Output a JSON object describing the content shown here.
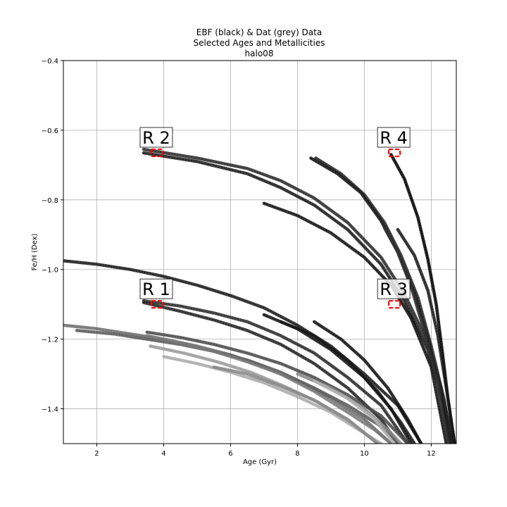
{
  "chart_data": {
    "type": "scatter",
    "title_lines": [
      "EBF (black) & Dat (grey) Data",
      "Selected Ages and Metallicities",
      "halo08"
    ],
    "xlabel": "Age (Gyr)",
    "ylabel": "Fe/H (Dex)",
    "xlim": [
      1.0,
      12.75
    ],
    "ylim": [
      -1.5,
      -0.4
    ],
    "xticks": [
      2,
      4,
      6,
      8,
      10,
      12
    ],
    "yticks": [
      -1.4,
      -1.2,
      -1.0,
      -0.8,
      -0.6,
      -0.4
    ],
    "xtick_labels": [
      "2",
      "4",
      "6",
      "8",
      "10",
      "12"
    ],
    "ytick_labels": [
      "−1.4",
      "−1.2",
      "−1.0",
      "−0.8",
      "−0.6",
      "−0.4"
    ],
    "grid": true,
    "colors": {
      "ebf": "#000000",
      "dat": "#808080",
      "region_box": "#ff0000"
    },
    "regions": [
      {
        "label": "R 1",
        "age": 3.8,
        "feh": -1.1
      },
      {
        "label": "R 2",
        "age": 3.8,
        "feh": -0.665
      },
      {
        "label": "R 3",
        "age": 10.9,
        "feh": -1.1
      },
      {
        "label": "R 4",
        "age": 10.9,
        "feh": -0.665
      }
    ],
    "series": [
      {
        "points": [
          [
            3.4,
            -0.655
          ],
          [
            5.0,
            -0.68
          ],
          [
            6.5,
            -0.71
          ],
          [
            7.5,
            -0.745
          ],
          [
            8.5,
            -0.795
          ],
          [
            9.5,
            -0.865
          ],
          [
            10.5,
            -0.965
          ],
          [
            11.2,
            -1.07
          ],
          [
            11.9,
            -1.21
          ],
          [
            12.3,
            -1.34
          ],
          [
            12.65,
            -1.5
          ]
        ],
        "color": "#2a2a2a"
      },
      {
        "points": [
          [
            3.4,
            -0.665
          ],
          [
            5.0,
            -0.69
          ],
          [
            6.5,
            -0.725
          ],
          [
            7.5,
            -0.765
          ],
          [
            8.5,
            -0.815
          ],
          [
            9.5,
            -0.885
          ],
          [
            10.5,
            -0.985
          ],
          [
            11.2,
            -1.09
          ],
          [
            11.9,
            -1.23
          ],
          [
            12.3,
            -1.36
          ],
          [
            12.6,
            -1.5
          ]
        ],
        "color": "#1a1a1a"
      },
      {
        "points": [
          [
            7.0,
            -0.81
          ],
          [
            8.0,
            -0.845
          ],
          [
            9.0,
            -0.895
          ],
          [
            10.0,
            -0.965
          ],
          [
            10.8,
            -1.045
          ],
          [
            11.4,
            -1.14
          ],
          [
            12.0,
            -1.28
          ],
          [
            12.45,
            -1.5
          ]
        ],
        "color": "#111111"
      },
      {
        "points": [
          [
            8.4,
            -0.68
          ],
          [
            9.2,
            -0.725
          ],
          [
            9.9,
            -0.78
          ],
          [
            10.5,
            -0.86
          ],
          [
            11.0,
            -0.95
          ],
          [
            11.5,
            -1.07
          ],
          [
            11.9,
            -1.2
          ],
          [
            12.3,
            -1.37
          ],
          [
            12.55,
            -1.5
          ]
        ],
        "color": "#111111"
      },
      {
        "points": [
          [
            8.55,
            -0.68
          ],
          [
            9.3,
            -0.725
          ],
          [
            10.0,
            -0.785
          ],
          [
            10.6,
            -0.865
          ],
          [
            11.1,
            -0.96
          ],
          [
            11.6,
            -1.08
          ],
          [
            12.0,
            -1.22
          ],
          [
            12.4,
            -1.38
          ],
          [
            12.6,
            -1.5
          ]
        ],
        "color": "#222222"
      },
      {
        "points": [
          [
            10.8,
            -0.67
          ],
          [
            11.2,
            -0.74
          ],
          [
            11.6,
            -0.85
          ],
          [
            11.9,
            -0.97
          ],
          [
            12.15,
            -1.1
          ],
          [
            12.35,
            -1.25
          ],
          [
            12.5,
            -1.37
          ],
          [
            12.7,
            -1.5
          ]
        ],
        "color": "#000000"
      },
      {
        "points": [
          [
            11.0,
            -0.885
          ],
          [
            11.5,
            -0.96
          ],
          [
            11.9,
            -1.06
          ],
          [
            12.2,
            -1.19
          ],
          [
            12.45,
            -1.34
          ],
          [
            12.7,
            -1.5
          ]
        ],
        "color": "#1a1a1a"
      },
      {
        "points": [
          [
            10.6,
            -0.88
          ],
          [
            11.0,
            -0.95
          ],
          [
            11.4,
            -1.05
          ],
          [
            11.8,
            -1.18
          ],
          [
            12.2,
            -1.33
          ],
          [
            12.5,
            -1.5
          ]
        ],
        "color": "#333333"
      },
      {
        "points": [
          [
            1.0,
            -0.975
          ],
          [
            2.0,
            -0.985
          ],
          [
            3.0,
            -1.0
          ],
          [
            4.0,
            -1.02
          ],
          [
            5.0,
            -1.045
          ],
          [
            6.0,
            -1.075
          ],
          [
            7.0,
            -1.11
          ],
          [
            8.0,
            -1.16
          ],
          [
            9.0,
            -1.22
          ],
          [
            10.0,
            -1.3
          ],
          [
            11.0,
            -1.39
          ],
          [
            11.7,
            -1.5
          ]
        ],
        "color": "#1a1a1a"
      },
      {
        "points": [
          [
            3.4,
            -1.09
          ],
          [
            4.5,
            -1.105
          ],
          [
            5.5,
            -1.125
          ],
          [
            6.5,
            -1.15
          ],
          [
            7.5,
            -1.19
          ],
          [
            8.5,
            -1.24
          ],
          [
            9.5,
            -1.31
          ],
          [
            10.5,
            -1.39
          ],
          [
            11.3,
            -1.5
          ]
        ],
        "color": "#2a2a2a"
      },
      {
        "points": [
          [
            3.4,
            -1.095
          ],
          [
            4.5,
            -1.12
          ],
          [
            5.5,
            -1.145
          ],
          [
            6.5,
            -1.175
          ],
          [
            7.5,
            -1.215
          ],
          [
            8.5,
            -1.27
          ],
          [
            9.5,
            -1.34
          ],
          [
            10.5,
            -1.43
          ],
          [
            11.0,
            -1.5
          ]
        ],
        "color": "#222222"
      },
      {
        "points": [
          [
            7.0,
            -1.13
          ],
          [
            8.0,
            -1.17
          ],
          [
            9.0,
            -1.23
          ],
          [
            10.0,
            -1.31
          ],
          [
            10.8,
            -1.4
          ],
          [
            11.4,
            -1.5
          ]
        ],
        "color": "#111111"
      },
      {
        "points": [
          [
            7.5,
            -1.15
          ],
          [
            8.5,
            -1.19
          ],
          [
            9.5,
            -1.26
          ],
          [
            10.4,
            -1.35
          ],
          [
            11.1,
            -1.44
          ],
          [
            11.5,
            -1.5
          ]
        ],
        "color": "#1a1a1a"
      },
      {
        "points": [
          [
            8.5,
            -1.15
          ],
          [
            9.3,
            -1.2
          ],
          [
            10.0,
            -1.26
          ],
          [
            10.7,
            -1.34
          ],
          [
            11.3,
            -1.43
          ],
          [
            11.7,
            -1.5
          ]
        ],
        "color": "#111111"
      },
      {
        "points": [
          [
            1.0,
            -1.16
          ],
          [
            2.0,
            -1.17
          ],
          [
            3.0,
            -1.185
          ],
          [
            4.0,
            -1.2
          ],
          [
            5.0,
            -1.22
          ],
          [
            6.0,
            -1.245
          ],
          [
            7.0,
            -1.28
          ],
          [
            8.0,
            -1.32
          ],
          [
            9.0,
            -1.37
          ],
          [
            10.0,
            -1.43
          ],
          [
            10.8,
            -1.5
          ]
        ],
        "color": "#6e6e6e"
      },
      {
        "points": [
          [
            1.4,
            -1.175
          ],
          [
            2.5,
            -1.185
          ],
          [
            3.5,
            -1.2
          ],
          [
            4.5,
            -1.215
          ],
          [
            5.5,
            -1.235
          ],
          [
            6.5,
            -1.26
          ],
          [
            7.5,
            -1.295
          ],
          [
            8.5,
            -1.34
          ],
          [
            9.5,
            -1.39
          ],
          [
            10.5,
            -1.45
          ],
          [
            11.0,
            -1.5
          ]
        ],
        "color": "#5a5a5a"
      },
      {
        "points": [
          [
            3.5,
            -1.18
          ],
          [
            4.5,
            -1.195
          ],
          [
            5.5,
            -1.215
          ],
          [
            6.5,
            -1.24
          ],
          [
            7.5,
            -1.27
          ],
          [
            8.5,
            -1.31
          ],
          [
            9.5,
            -1.36
          ],
          [
            10.5,
            -1.42
          ],
          [
            11.3,
            -1.5
          ]
        ],
        "color": "#4a4a4a"
      },
      {
        "points": [
          [
            3.5,
            -1.19
          ],
          [
            4.5,
            -1.21
          ],
          [
            5.5,
            -1.235
          ],
          [
            6.5,
            -1.265
          ],
          [
            7.5,
            -1.3
          ],
          [
            8.5,
            -1.35
          ],
          [
            9.5,
            -1.41
          ],
          [
            10.3,
            -1.46
          ],
          [
            10.8,
            -1.5
          ]
        ],
        "color": "#7a7a7a"
      },
      {
        "points": [
          [
            3.6,
            -1.22
          ],
          [
            4.6,
            -1.24
          ],
          [
            5.6,
            -1.265
          ],
          [
            6.6,
            -1.295
          ],
          [
            7.6,
            -1.335
          ],
          [
            8.6,
            -1.38
          ],
          [
            9.6,
            -1.44
          ],
          [
            10.4,
            -1.5
          ]
        ],
        "color": "#9a9a9a"
      },
      {
        "points": [
          [
            4.0,
            -1.25
          ],
          [
            5.0,
            -1.27
          ],
          [
            6.0,
            -1.295
          ],
          [
            7.0,
            -1.325
          ],
          [
            8.0,
            -1.365
          ],
          [
            9.0,
            -1.41
          ],
          [
            10.0,
            -1.47
          ],
          [
            10.5,
            -1.5
          ]
        ],
        "color": "#aaaaaa"
      },
      {
        "points": [
          [
            5.5,
            -1.28
          ],
          [
            6.5,
            -1.3
          ],
          [
            7.5,
            -1.335
          ],
          [
            8.5,
            -1.375
          ],
          [
            9.5,
            -1.43
          ],
          [
            10.4,
            -1.5
          ]
        ],
        "color": "#888888"
      },
      {
        "points": [
          [
            8.0,
            -1.3
          ],
          [
            9.0,
            -1.34
          ],
          [
            10.0,
            -1.4
          ],
          [
            10.7,
            -1.46
          ],
          [
            11.1,
            -1.5
          ]
        ],
        "color": "#8a8a8a"
      },
      {
        "points": [
          [
            8.5,
            -1.32
          ],
          [
            9.5,
            -1.37
          ],
          [
            10.3,
            -1.43
          ],
          [
            10.9,
            -1.5
          ]
        ],
        "color": "#b0b0b0"
      }
    ]
  }
}
